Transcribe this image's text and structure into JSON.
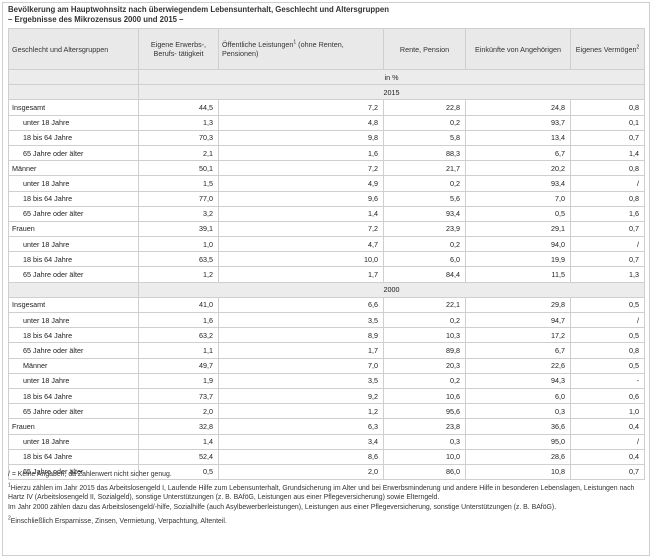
{
  "title": "Bevölkerung am Hauptwohnsitz nach überwiegendem Lebensunterhalt, Geschlecht und Altersgruppen",
  "subtitle": "– Ergebnisse des Mikrozensus 2000 und 2015 –",
  "headers": {
    "group": "Geschlecht und Altersgruppen",
    "erwerb": "Eigene Erwerbs-, Berufs- tätigkeit",
    "oeff": "Öffentliche Leistungen",
    "oeff_sup": "1",
    "oeff_suffix": " (ohne Renten, Pensionen)",
    "rente": "Rente, Pension",
    "angeh": "Einkünfte von Angehörigen",
    "verm": "Eigenes Vermögen",
    "verm_sup": "2"
  },
  "unit": "in %",
  "sections": [
    {
      "year": "2015",
      "rows": [
        {
          "label": "Insgesamt",
          "indent": false,
          "v": [
            "44,5",
            "7,2",
            "22,8",
            "24,8",
            "0,8"
          ]
        },
        {
          "label": "unter 18 Jahre",
          "indent": true,
          "v": [
            "1,3",
            "4,8",
            "0,2",
            "93,7",
            "0,1"
          ]
        },
        {
          "label": "18 bis 64 Jahre",
          "indent": true,
          "v": [
            "70,3",
            "9,8",
            "5,8",
            "13,4",
            "0,7"
          ]
        },
        {
          "label": "65 Jahre oder älter",
          "indent": true,
          "v": [
            "2,1",
            "1,6",
            "88,3",
            "6,7",
            "1,4"
          ]
        },
        {
          "label": "Männer",
          "indent": false,
          "v": [
            "50,1",
            "7,2",
            "21,7",
            "20,2",
            "0,8"
          ]
        },
        {
          "label": "unter 18 Jahre",
          "indent": true,
          "v": [
            "1,5",
            "4,9",
            "0,2",
            "93,4",
            "/"
          ]
        },
        {
          "label": "18 bis 64 Jahre",
          "indent": true,
          "v": [
            "77,0",
            "9,6",
            "5,6",
            "7,0",
            "0,8"
          ]
        },
        {
          "label": "65 Jahre oder älter",
          "indent": true,
          "v": [
            "3,2",
            "1,4",
            "93,4",
            "0,5",
            "1,6"
          ]
        },
        {
          "label": "Frauen",
          "indent": false,
          "v": [
            "39,1",
            "7,2",
            "23,9",
            "29,1",
            "0,7"
          ]
        },
        {
          "label": "unter 18 Jahre",
          "indent": true,
          "v": [
            "1,0",
            "4,7",
            "0,2",
            "94,0",
            "/"
          ]
        },
        {
          "label": "18 bis 64 Jahre",
          "indent": true,
          "v": [
            "63,5",
            "10,0",
            "6,0",
            "19,9",
            "0,7"
          ]
        },
        {
          "label": "65 Jahre oder älter",
          "indent": true,
          "v": [
            "1,2",
            "1,7",
            "84,4",
            "11,5",
            "1,3"
          ]
        }
      ]
    },
    {
      "year": "2000",
      "rows": [
        {
          "label": "Insgesamt",
          "indent": false,
          "v": [
            "41,0",
            "6,6",
            "22,1",
            "29,8",
            "0,5"
          ]
        },
        {
          "label": "unter 18 Jahre",
          "indent": true,
          "v": [
            "1,6",
            "3,5",
            "0,2",
            "94,7",
            "/"
          ]
        },
        {
          "label": "18 bis 64 Jahre",
          "indent": true,
          "v": [
            "63,2",
            "8,9",
            "10,3",
            "17,2",
            "0,5"
          ]
        },
        {
          "label": "65 Jahre oder älter",
          "indent": true,
          "v": [
            "1,1",
            "1,7",
            "89,8",
            "6,7",
            "0,8"
          ]
        },
        {
          "label": "Männer",
          "indent": true,
          "v": [
            "49,7",
            "7,0",
            "20,3",
            "22,6",
            "0,5"
          ]
        },
        {
          "label": "unter 18 Jahre",
          "indent": true,
          "v": [
            "1,9",
            "3,5",
            "0,2",
            "94,3",
            "-"
          ]
        },
        {
          "label": "18 bis 64 Jahre",
          "indent": true,
          "v": [
            "73,7",
            "9,2",
            "10,6",
            "6,0",
            "0,6"
          ]
        },
        {
          "label": "65 Jahre oder älter",
          "indent": true,
          "v": [
            "2,0",
            "1,2",
            "95,6",
            "0,3",
            "1,0"
          ]
        },
        {
          "label": "Frauen",
          "indent": false,
          "v": [
            "32,8",
            "6,3",
            "23,8",
            "36,6",
            "0,4"
          ]
        },
        {
          "label": "unter 18 Jahre",
          "indent": true,
          "v": [
            "1,4",
            "3,4",
            "0,3",
            "95,0",
            "/"
          ]
        },
        {
          "label": "18 bis 64 Jahre",
          "indent": true,
          "v": [
            "52,4",
            "8,6",
            "10,0",
            "28,6",
            "0,4"
          ]
        },
        {
          "label": "65 Jahre oder älter",
          "indent": true,
          "v": [
            "0,5",
            "2,0",
            "86,0",
            "10,8",
            "0,7"
          ]
        }
      ]
    }
  ],
  "notes": {
    "slash": "/ = Keine Angaben, da Zahlenwert nicht sicher genug.",
    "n1_sup": "1",
    "n1_text": "Hierzu zählen im Jahr 2015 das Arbeitslosengeld I, Laufende Hilfe zum Lebensunterhalt, Grundsicherung im Alter und bei Erwerbsminderung und andere Hilfe in besonderen Lebenslagen, Leistungen nach Hartz IV (Arbeitslosengeld II, Sozialgeld), sonstige Unterstützungen (z. B. BAföG, Leistungen aus einer Pflegeversicherung) sowie Elterngeld.",
    "n1_text2": "Im Jahr 2000 zählen dazu das Arbeitslosengeld/-hilfe, Sozialhilfe (auch Asylbewerberleistungen), Leistungen aus einer Pflegeversicherung, sonstige Unterstützungen (z. B. BAföG).",
    "n2_sup": "2",
    "n2_text": "Einschließlich Ersparnisse, Zinsen, Vermietung, Verpachtung, Altenteil."
  }
}
